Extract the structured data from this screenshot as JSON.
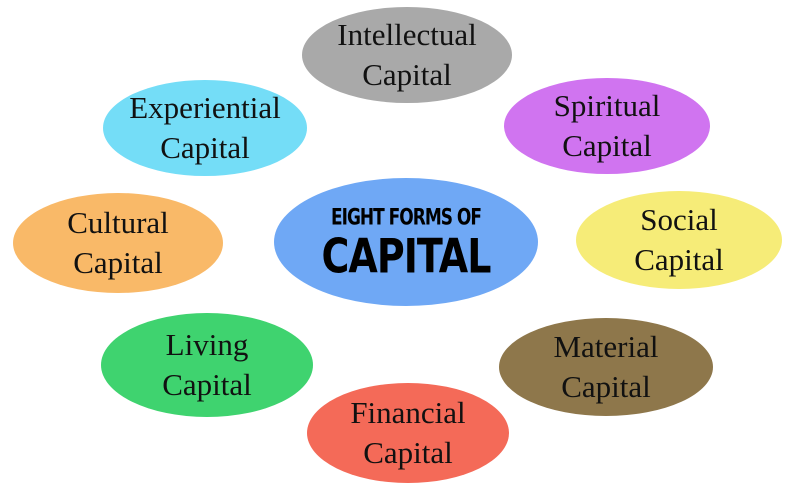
{
  "center": {
    "line1": "EIGHT FORMS OF",
    "line2": "CAPITAL",
    "color": "#6FA8F5"
  },
  "capitals": [
    {
      "line1": "Intellectual",
      "line2": "Capital",
      "color": "#A9A9A9"
    },
    {
      "line1": "Spiritual",
      "line2": "Capital",
      "color": "#D074F0"
    },
    {
      "line1": "Experiential",
      "line2": "Capital",
      "color": "#74DDF7"
    },
    {
      "line1": "Cultural",
      "line2": "Capital",
      "color": "#F9B968"
    },
    {
      "line1": "Social",
      "line2": "Capital",
      "color": "#F6EC78"
    },
    {
      "line1": "Living",
      "line2": "Capital",
      "color": "#3FD36F"
    },
    {
      "line1": "Material",
      "line2": "Capital",
      "color": "#8E774B"
    },
    {
      "line1": "Financial",
      "line2": "Capital",
      "color": "#F46A58"
    }
  ]
}
